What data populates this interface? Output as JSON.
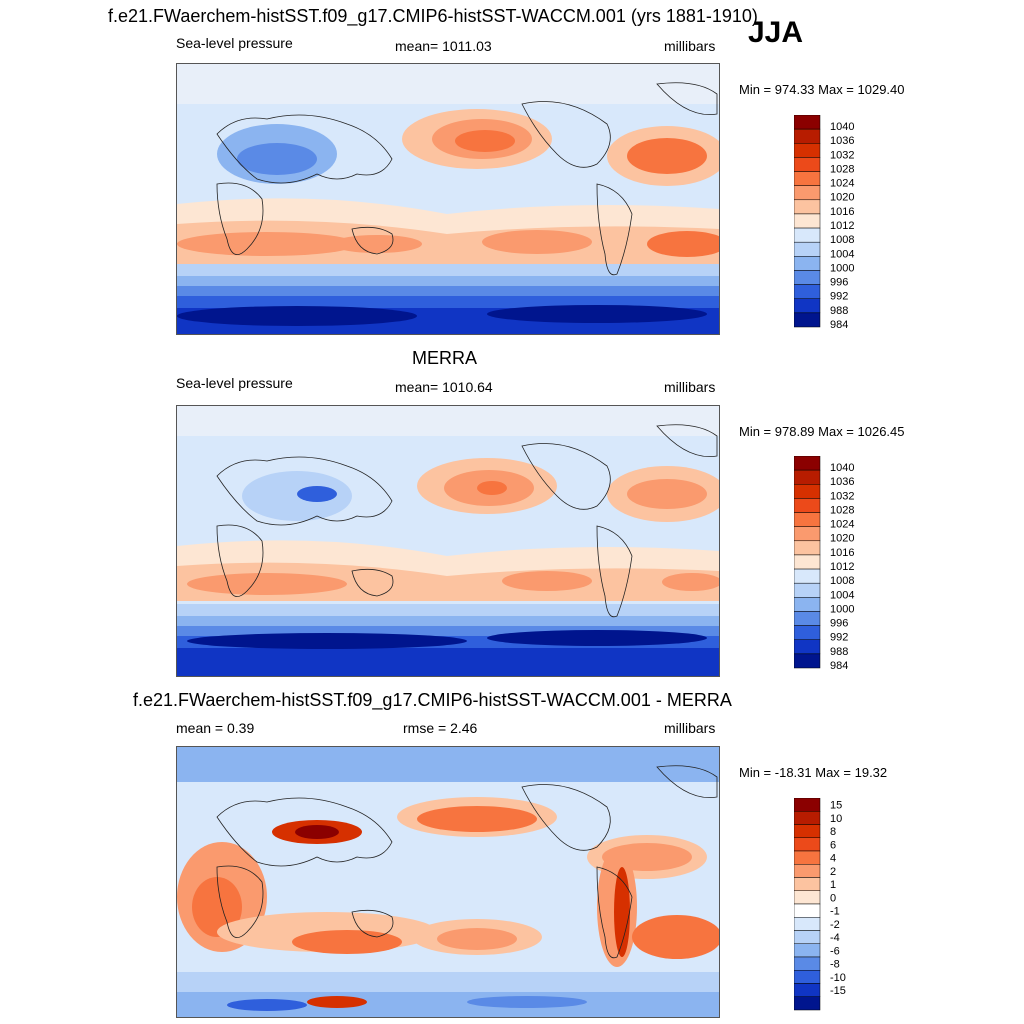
{
  "main_title": "f.e21.FWaerchem-histSST.f09_g17.CMIP6-histSST-WACCM.001 (yrs 1881-1910)",
  "season": "JJA",
  "merra_title": "MERRA",
  "diff_title": "f.e21.FWaerchem-histSST.f09_g17.CMIP6-histSST-WACCM.001 - MERRA",
  "chart_data": [
    {
      "type": "heatmap",
      "panel": "model",
      "left_label": "Sea-level pressure",
      "center_label": "mean= 1011.03",
      "units": "millibars",
      "min_max": "Min = 974.33 Max = 1029.40",
      "levels": [
        "1040",
        "1036",
        "1032",
        "1028",
        "1024",
        "1020",
        "1016",
        "1012",
        "1008",
        "1004",
        "1000",
        "996",
        "992",
        "988",
        "984"
      ],
      "colors": [
        "#8b0000",
        "#b71c00",
        "#d63000",
        "#ec4a1a",
        "#f7743f",
        "#fa9a6e",
        "#fcc3a0",
        "#fde6d3",
        "#d8e8fb",
        "#b7d2f7",
        "#8bb4f0",
        "#5a8ae6",
        "#2f5fdc",
        "#1035c4",
        "#00158e"
      ]
    },
    {
      "type": "heatmap",
      "panel": "obs",
      "left_label": "Sea-level pressure",
      "center_label": "mean= 1010.64",
      "units": "millibars",
      "min_max": "Min = 978.89 Max = 1026.45",
      "levels": [
        "1040",
        "1036",
        "1032",
        "1028",
        "1024",
        "1020",
        "1016",
        "1012",
        "1008",
        "1004",
        "1000",
        "996",
        "992",
        "988",
        "984"
      ],
      "colors": [
        "#8b0000",
        "#b71c00",
        "#d63000",
        "#ec4a1a",
        "#f7743f",
        "#fa9a6e",
        "#fcc3a0",
        "#fde6d3",
        "#d8e8fb",
        "#b7d2f7",
        "#8bb4f0",
        "#5a8ae6",
        "#2f5fdc",
        "#1035c4",
        "#00158e"
      ]
    },
    {
      "type": "heatmap",
      "panel": "diff",
      "left_label": "mean =   0.39",
      "center_label": "rmse =   2.46",
      "units": "millibars",
      "min_max": "Min = -18.31 Max =  19.32",
      "levels": [
        "15",
        "10",
        "8",
        "6",
        "4",
        "2",
        "1",
        "0",
        "-1",
        "-2",
        "-4",
        "-6",
        "-8",
        "-10",
        "-15"
      ],
      "colors": [
        "#8b0000",
        "#b71c00",
        "#d63000",
        "#ec4a1a",
        "#f7743f",
        "#fa9a6e",
        "#fcc3a0",
        "#fde6d3",
        "#ffffff",
        "#d8e8fb",
        "#b7d2f7",
        "#8bb4f0",
        "#5a8ae6",
        "#2f5fdc",
        "#1035c4",
        "#00158e"
      ]
    }
  ]
}
